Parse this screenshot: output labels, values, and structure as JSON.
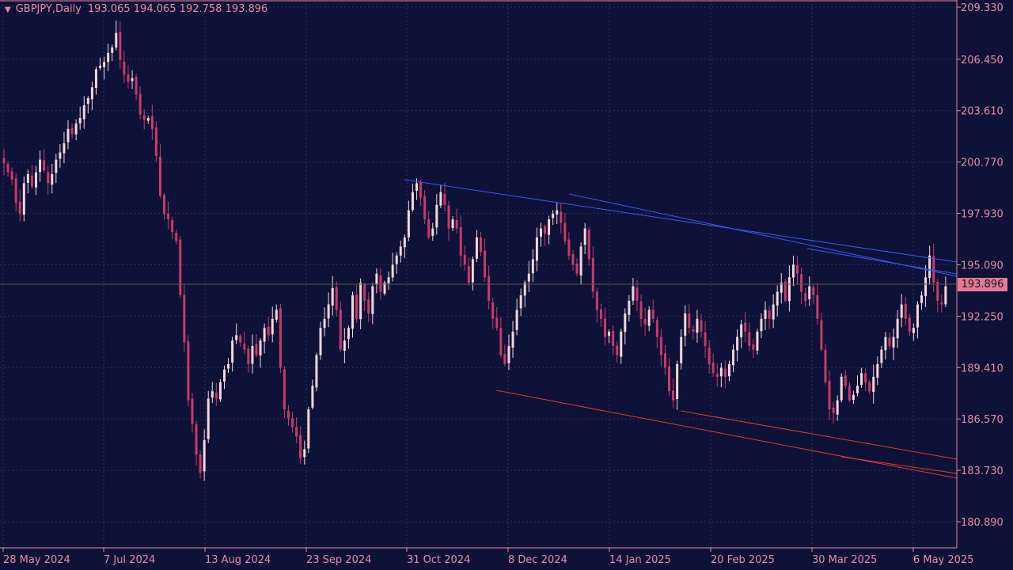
{
  "header": {
    "symbol": "GBPJPY,Daily",
    "ohlc": "193.065 194.065 192.758 193.896"
  },
  "current_price_label": "193.896",
  "colors": {
    "background": "#0e1238",
    "grid": "#2a3358",
    "axis_text": "#e88aa0",
    "candle_bull": "#f4d6dc",
    "candle_bear": "#c93a6a",
    "trendline_upper": "#3a5cf0",
    "trendline_lower": "#e03a2e",
    "price_label_bg": "#e87a90"
  },
  "chart_data": {
    "type": "candlestick",
    "title": "GBPJPY,Daily",
    "y_ticks": [
      209.33,
      206.45,
      203.61,
      200.77,
      197.93,
      195.09,
      192.25,
      189.41,
      186.57,
      183.73,
      180.89
    ],
    "y_tick_labels": [
      "209.330",
      "206.450",
      "203.610",
      "200.770",
      "197.930",
      "195.090",
      "192.250",
      "189.410",
      "186.570",
      "183.730",
      "180.890"
    ],
    "x_tick_labels": [
      "28 May 2024",
      "7 Jul 2024",
      "13 Aug 2024",
      "23 Sep 2024",
      "31 Oct 2024",
      "8 Dec 2024",
      "14 Jan 2025",
      "20 Feb 2025",
      "30 Mar 2025",
      "6 May 2025"
    ],
    "ylim": [
      179.9,
      209.5
    ],
    "grid": true,
    "last_price": 193.896,
    "closes": [
      200.7,
      200.2,
      199.8,
      198.5,
      197.9,
      199.6,
      200.1,
      199.4,
      200.2,
      200.9,
      200.3,
      199.6,
      200.1,
      200.9,
      201.3,
      201.8,
      202.6,
      202.3,
      202.9,
      203.2,
      203.9,
      204.3,
      204.9,
      205.9,
      206.1,
      206.3,
      206.8,
      207.1,
      207.9,
      206.4,
      205.6,
      205.2,
      205.4,
      204.5,
      203.4,
      203.1,
      203.2,
      202.6,
      201.1,
      198.9,
      197.9,
      197.6,
      196.9,
      196.4,
      193.4,
      190.8,
      187.6,
      186.3,
      184.6,
      183.6,
      185.4,
      187.7,
      188.1,
      187.7,
      188.6,
      189.3,
      189.6,
      190.9,
      191.2,
      190.8,
      190.4,
      189.6,
      190.6,
      190.1,
      190.9,
      191.6,
      191.2,
      192.1,
      192.6,
      189.4,
      187.1,
      186.6,
      186.1,
      185.6,
      184.4,
      184.9,
      187.1,
      188.4,
      190.1,
      191.6,
      192.1,
      192.9,
      193.8,
      192.6,
      190.4,
      190.9,
      191.6,
      193.4,
      192.1,
      194.1,
      193.1,
      192.4,
      193.9,
      194.6,
      193.6,
      194.1,
      194.4,
      195.1,
      195.6,
      196.1,
      196.6,
      198.1,
      199.1,
      199.6,
      198.8,
      197.6,
      196.6,
      197.1,
      198.4,
      199.1,
      198.4,
      197.1,
      197.6,
      197.1,
      195.6,
      195.1,
      194.1,
      195.4,
      196.6,
      195.8,
      194.4,
      193.1,
      192.1,
      191.6,
      190.1,
      189.6,
      190.6,
      191.4,
      192.6,
      193.4,
      194.1,
      194.6,
      195.4,
      196.6,
      197.1,
      196.8,
      197.6,
      197.9,
      198.1,
      197.4,
      196.4,
      195.6,
      195.1,
      194.6,
      196.1,
      197.1,
      195.4,
      193.6,
      192.6,
      192.1,
      191.1,
      191.4,
      190.6,
      190.1,
      191.4,
      192.4,
      193.1,
      193.9,
      193.1,
      192.1,
      191.8,
      192.6,
      192.1,
      191.1,
      190.1,
      189.4,
      188.1,
      187.6,
      189.6,
      191.1,
      192.4,
      191.6,
      191.4,
      192.1,
      191.4,
      190.6,
      189.6,
      189.1,
      188.9,
      189.4,
      188.9,
      189.6,
      190.4,
      191.1,
      191.8,
      191.4,
      190.6,
      190.4,
      191.4,
      192.1,
      192.6,
      192.1,
      192.9,
      193.6,
      194.1,
      193.1,
      194.4,
      195.1,
      194.6,
      193.6,
      193.1,
      193.9,
      193.4,
      192.1,
      190.4,
      188.6,
      187.1,
      186.9,
      187.6,
      188.9,
      188.4,
      187.6,
      187.9,
      188.4,
      189.1,
      188.6,
      188.1,
      188.9,
      189.6,
      190.4,
      191.1,
      190.6,
      191.1,
      192.1,
      192.9,
      192.1,
      191.4,
      191.6,
      192.9,
      193.4,
      194.4,
      195.6,
      194.1,
      193.1,
      192.9,
      193.896
    ]
  }
}
